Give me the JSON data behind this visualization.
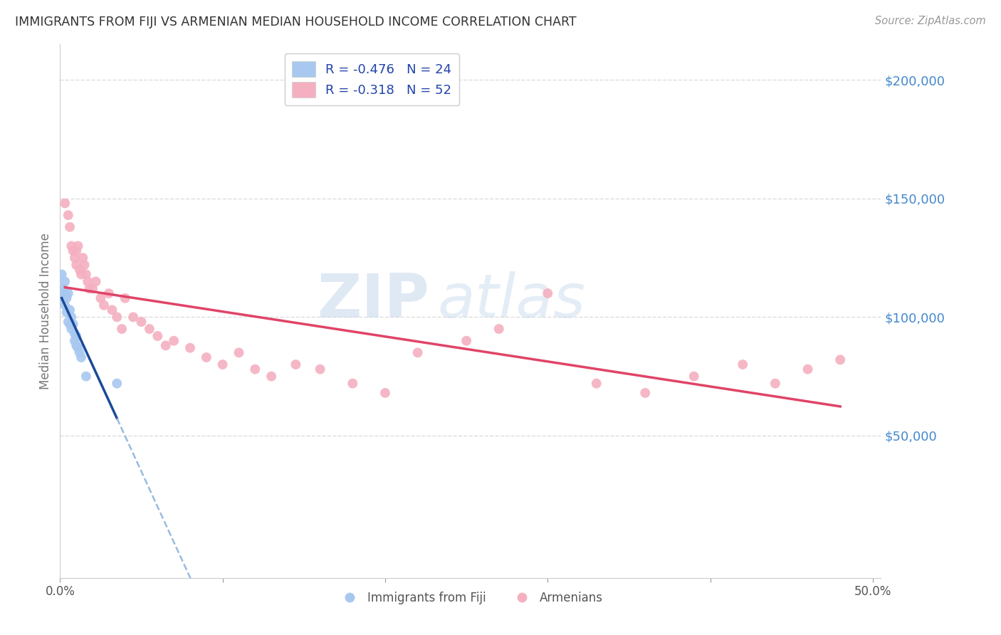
{
  "title": "IMMIGRANTS FROM FIJI VS ARMENIAN MEDIAN HOUSEHOLD INCOME CORRELATION CHART",
  "source": "Source: ZipAtlas.com",
  "ylabel": "Median Household Income",
  "ytick_labels": [
    "$50,000",
    "$100,000",
    "$150,000",
    "$200,000"
  ],
  "ytick_values": [
    50000,
    100000,
    150000,
    200000
  ],
  "legend_fiji_R": "-0.476",
  "legend_fiji_N": "24",
  "legend_arm_R": "-0.318",
  "legend_arm_N": "52",
  "fiji_scatter_x": [
    0.001,
    0.002,
    0.002,
    0.003,
    0.003,
    0.003,
    0.004,
    0.004,
    0.005,
    0.005,
    0.006,
    0.006,
    0.007,
    0.007,
    0.008,
    0.009,
    0.009,
    0.01,
    0.01,
    0.011,
    0.012,
    0.013,
    0.016,
    0.035
  ],
  "fiji_scatter_y": [
    118000,
    112000,
    108000,
    115000,
    110000,
    105000,
    108000,
    102000,
    110000,
    98000,
    103000,
    97000,
    100000,
    95000,
    97000,
    93000,
    90000,
    92000,
    88000,
    87000,
    85000,
    83000,
    75000,
    72000
  ],
  "armenian_scatter_x": [
    0.003,
    0.005,
    0.006,
    0.007,
    0.008,
    0.009,
    0.01,
    0.01,
    0.011,
    0.012,
    0.013,
    0.014,
    0.015,
    0.016,
    0.017,
    0.018,
    0.02,
    0.022,
    0.025,
    0.027,
    0.03,
    0.032,
    0.035,
    0.038,
    0.04,
    0.045,
    0.05,
    0.055,
    0.06,
    0.065,
    0.07,
    0.08,
    0.09,
    0.1,
    0.11,
    0.12,
    0.13,
    0.145,
    0.16,
    0.18,
    0.2,
    0.22,
    0.25,
    0.27,
    0.3,
    0.33,
    0.36,
    0.39,
    0.42,
    0.44,
    0.46,
    0.48
  ],
  "armenian_scatter_y": [
    148000,
    143000,
    138000,
    130000,
    128000,
    125000,
    128000,
    122000,
    130000,
    120000,
    118000,
    125000,
    122000,
    118000,
    115000,
    112000,
    112000,
    115000,
    108000,
    105000,
    110000,
    103000,
    100000,
    95000,
    108000,
    100000,
    98000,
    95000,
    92000,
    88000,
    90000,
    87000,
    83000,
    80000,
    85000,
    78000,
    75000,
    80000,
    78000,
    72000,
    68000,
    85000,
    90000,
    95000,
    110000,
    72000,
    68000,
    75000,
    80000,
    72000,
    78000,
    82000
  ],
  "fiji_color": "#a8c8f0",
  "armenian_color": "#f4b0c0",
  "fiji_line_color": "#1a4a99",
  "armenian_line_color": "#e04468",
  "dashed_line_color": "#99bbdd",
  "watermark_zip": "ZIP",
  "watermark_atlas": "atlas",
  "xlim_pct": [
    0.0,
    0.505
  ],
  "ylim": [
    0,
    215000
  ],
  "ylim_display_min": -10000,
  "marker_size": 100,
  "background_color": "#ffffff",
  "grid_color": "#dddddd",
  "xtick_positions": [
    0.0,
    0.1,
    0.2,
    0.3,
    0.4,
    0.5
  ],
  "xtick_labels_show": [
    "0.0%",
    "",
    "",
    "",
    "",
    "50.0%"
  ]
}
